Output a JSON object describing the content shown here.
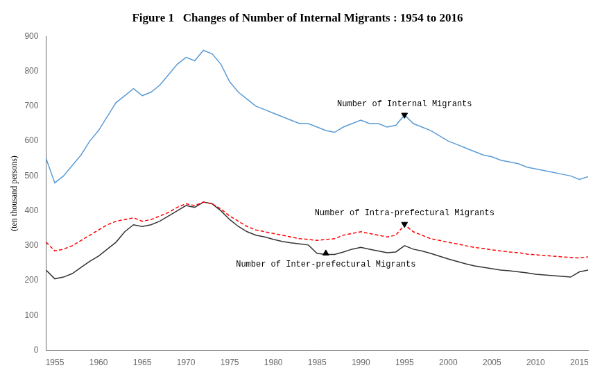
{
  "chart_data": {
    "type": "line",
    "title": "Figure 1   Changes of Number of Internal Migrants : 1954 to 2016",
    "ylabel": "(ten thousand persons)",
    "x": [
      1954,
      1955,
      1956,
      1957,
      1958,
      1959,
      1960,
      1961,
      1962,
      1963,
      1964,
      1965,
      1966,
      1967,
      1968,
      1969,
      1970,
      1971,
      1972,
      1973,
      1974,
      1975,
      1976,
      1977,
      1978,
      1979,
      1980,
      1981,
      1982,
      1983,
      1984,
      1985,
      1986,
      1987,
      1988,
      1989,
      1990,
      1991,
      1992,
      1993,
      1994,
      1995,
      1996,
      1997,
      1998,
      1999,
      2000,
      2001,
      2002,
      2003,
      2004,
      2005,
      2006,
      2007,
      2008,
      2009,
      2010,
      2011,
      2012,
      2013,
      2014,
      2015,
      2016
    ],
    "xlim": [
      1954,
      2016
    ],
    "xticks": [
      1955,
      1960,
      1965,
      1970,
      1975,
      1980,
      1985,
      1990,
      1995,
      2000,
      2005,
      2010,
      2015
    ],
    "ylim": [
      0,
      900
    ],
    "yticks": [
      0,
      100,
      200,
      300,
      400,
      500,
      600,
      700,
      800,
      900
    ],
    "grid": false,
    "series": [
      {
        "color": "#5b9bd5",
        "line_style": "solid",
        "values": [
          550,
          480,
          500,
          530,
          560,
          600,
          630,
          670,
          710,
          730,
          750,
          730,
          740,
          760,
          790,
          820,
          840,
          830,
          860,
          850,
          820,
          770,
          740,
          720,
          700,
          690,
          680,
          670,
          660,
          650,
          650,
          640,
          630,
          625,
          640,
          650,
          660,
          650,
          650,
          640,
          645,
          675,
          650,
          640,
          630,
          615,
          600,
          590,
          580,
          570,
          560,
          555,
          545,
          540,
          535,
          525,
          520,
          515,
          510,
          505,
          500,
          490,
          498
        ]
      },
      {
        "color": "#ff0000",
        "line_style": "dashed",
        "values": [
          310,
          285,
          290,
          300,
          315,
          330,
          345,
          360,
          370,
          375,
          380,
          370,
          375,
          385,
          395,
          410,
          420,
          415,
          425,
          420,
          405,
          385,
          370,
          355,
          345,
          340,
          335,
          330,
          325,
          320,
          318,
          315,
          318,
          320,
          330,
          335,
          340,
          335,
          330,
          325,
          330,
          360,
          340,
          330,
          320,
          315,
          310,
          305,
          300,
          295,
          292,
          288,
          285,
          282,
          280,
          276,
          274,
          272,
          270,
          268,
          266,
          265,
          268
        ]
      },
      {
        "color": "#333333",
        "line_style": "solid",
        "values": [
          230,
          205,
          210,
          220,
          238,
          255,
          270,
          290,
          310,
          340,
          360,
          355,
          360,
          370,
          385,
          400,
          415,
          410,
          425,
          420,
          400,
          375,
          355,
          340,
          330,
          325,
          318,
          312,
          308,
          305,
          302,
          278,
          275,
          275,
          282,
          290,
          295,
          290,
          285,
          280,
          282,
          300,
          290,
          285,
          278,
          270,
          262,
          255,
          248,
          242,
          238,
          234,
          230,
          228,
          225,
          222,
          218,
          216,
          214,
          212,
          210,
          225,
          230
        ]
      }
    ],
    "annotations": [
      {
        "text": "Number of Internal Migrants",
        "x": 1995,
        "y": 675,
        "marker": "triangle-down"
      },
      {
        "text": "Number of Intra-prefectural Migrants",
        "x": 1995,
        "y": 362,
        "marker": "triangle-down"
      },
      {
        "text": "Number of Inter-prefectural Migrants",
        "x": 1986,
        "y": 278,
        "marker": "triangle-up"
      }
    ]
  }
}
